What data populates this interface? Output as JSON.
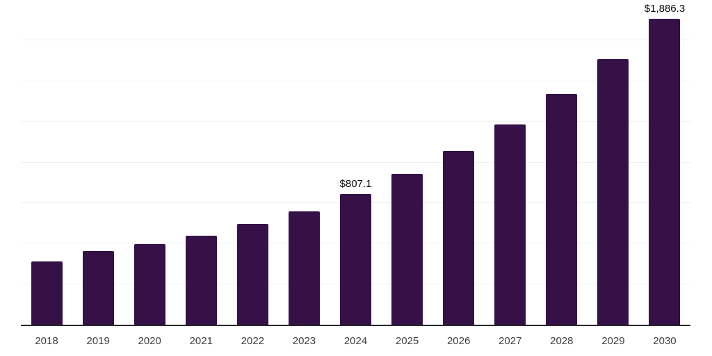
{
  "chart_data": {
    "type": "bar",
    "title": "",
    "xlabel": "",
    "ylabel": "",
    "categories": [
      "2018",
      "2019",
      "2020",
      "2021",
      "2022",
      "2023",
      "2024",
      "2025",
      "2026",
      "2027",
      "2028",
      "2029",
      "2030"
    ],
    "values": [
      390,
      452,
      495,
      550,
      620,
      700,
      807.1,
      929.9,
      1071.2,
      1234.0,
      1421.6,
      1637.6,
      1886.3
    ],
    "data_labels": [
      "",
      "",
      "",
      "",
      "",
      "",
      "$807.1",
      "",
      "",
      "",
      "",
      "",
      "$1,886.3"
    ],
    "ylim": [
      0,
      2000
    ],
    "y_gridline_interval": 250,
    "y_tick_labels_visible": false,
    "grid": true,
    "legend": false,
    "colors": {
      "bar": "#351148",
      "gridline": "#f0f0f0",
      "axis_line": "#262626",
      "x_tick_label": "#3d3d3d",
      "data_label": "#0a0a0a",
      "background": "#ffffff"
    }
  }
}
